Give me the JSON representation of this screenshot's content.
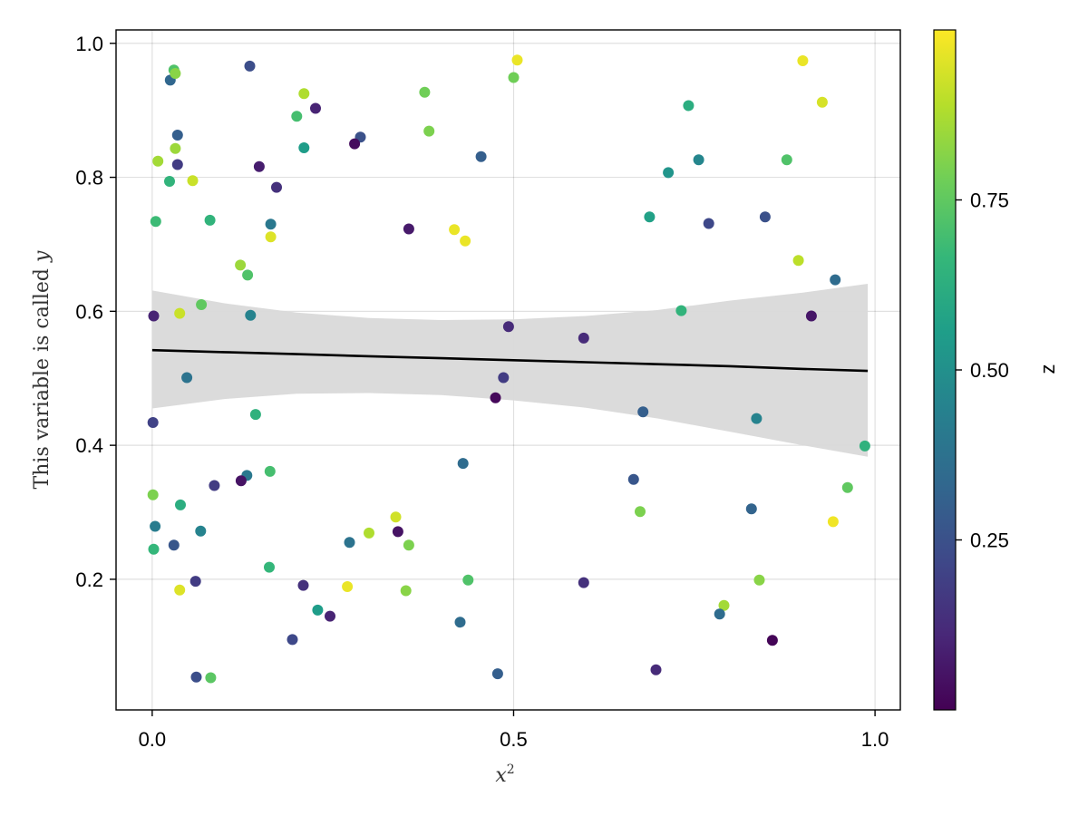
{
  "chart_data": {
    "type": "scatter",
    "title": "",
    "xlabel": "x",
    "xlabel_sup": "2",
    "ylabel": "This variable is called ",
    "ylabel_var": "y",
    "xlim": [
      -0.05,
      1.035
    ],
    "ylim": [
      0.005,
      1.02
    ],
    "xticks": [
      0.0,
      0.5,
      1.0
    ],
    "xtick_labels": [
      "0.0",
      "0.5",
      "1.0"
    ],
    "yticks": [
      0.2,
      0.4,
      0.6,
      0.8,
      1.0
    ],
    "ytick_labels": [
      "0.2",
      "0.4",
      "0.6",
      "0.8",
      "1.0"
    ],
    "grid": true,
    "colorbar": {
      "label": "z",
      "range": [
        0.0,
        1.0
      ],
      "ticks": [
        0.25,
        0.5,
        0.75
      ],
      "tick_labels": [
        "0.25",
        "0.50",
        "0.75"
      ],
      "colormap": "viridis"
    },
    "colors": {
      "viridis": [
        "#440154",
        "#482878",
        "#3e4989",
        "#31688e",
        "#26828e",
        "#1f9e89",
        "#35b779",
        "#6ece58",
        "#b5de2b",
        "#fde725"
      ],
      "fit_line": "#000000",
      "band": "#d9d9d9"
    },
    "fit": {
      "x": [
        0.0,
        0.1,
        0.2,
        0.3,
        0.4,
        0.5,
        0.6,
        0.7,
        0.8,
        0.9,
        0.99
      ],
      "y": [
        0.542,
        0.539,
        0.536,
        0.533,
        0.53,
        0.527,
        0.524,
        0.521,
        0.518,
        0.514,
        0.511
      ],
      "lower": [
        0.455,
        0.469,
        0.477,
        0.478,
        0.475,
        0.467,
        0.456,
        0.44,
        0.42,
        0.4,
        0.383
      ],
      "upper": [
        0.631,
        0.612,
        0.598,
        0.59,
        0.587,
        0.588,
        0.593,
        0.602,
        0.616,
        0.628,
        0.641
      ]
    },
    "points": [
      {
        "x": 0.03,
        "y": 0.96,
        "z": 0.72
      },
      {
        "x": 0.025,
        "y": 0.945,
        "z": 0.33
      },
      {
        "x": 0.032,
        "y": 0.955,
        "z": 0.82
      },
      {
        "x": 0.135,
        "y": 0.966,
        "z": 0.24
      },
      {
        "x": 0.505,
        "y": 0.975,
        "z": 0.97
      },
      {
        "x": 0.5,
        "y": 0.949,
        "z": 0.78
      },
      {
        "x": 0.377,
        "y": 0.927,
        "z": 0.78
      },
      {
        "x": 0.21,
        "y": 0.925,
        "z": 0.88
      },
      {
        "x": 0.226,
        "y": 0.903,
        "z": 0.1
      },
      {
        "x": 0.2,
        "y": 0.891,
        "z": 0.7
      },
      {
        "x": 0.383,
        "y": 0.869,
        "z": 0.8
      },
      {
        "x": 0.035,
        "y": 0.863,
        "z": 0.3
      },
      {
        "x": 0.288,
        "y": 0.86,
        "z": 0.25
      },
      {
        "x": 0.28,
        "y": 0.85,
        "z": 0.03
      },
      {
        "x": 0.21,
        "y": 0.844,
        "z": 0.55
      },
      {
        "x": 0.032,
        "y": 0.843,
        "z": 0.85
      },
      {
        "x": 0.455,
        "y": 0.831,
        "z": 0.3
      },
      {
        "x": 0.008,
        "y": 0.824,
        "z": 0.86
      },
      {
        "x": 0.035,
        "y": 0.819,
        "z": 0.18
      },
      {
        "x": 0.148,
        "y": 0.816,
        "z": 0.08
      },
      {
        "x": 0.024,
        "y": 0.794,
        "z": 0.65
      },
      {
        "x": 0.056,
        "y": 0.795,
        "z": 0.92
      },
      {
        "x": 0.172,
        "y": 0.785,
        "z": 0.14
      },
      {
        "x": 0.005,
        "y": 0.734,
        "z": 0.68
      },
      {
        "x": 0.08,
        "y": 0.736,
        "z": 0.65
      },
      {
        "x": 0.164,
        "y": 0.73,
        "z": 0.4
      },
      {
        "x": 0.355,
        "y": 0.723,
        "z": 0.07
      },
      {
        "x": 0.418,
        "y": 0.722,
        "z": 0.97
      },
      {
        "x": 0.433,
        "y": 0.705,
        "z": 0.97
      },
      {
        "x": 0.164,
        "y": 0.711,
        "z": 0.95
      },
      {
        "x": 0.122,
        "y": 0.669,
        "z": 0.85
      },
      {
        "x": 0.132,
        "y": 0.654,
        "z": 0.72
      },
      {
        "x": 0.068,
        "y": 0.61,
        "z": 0.75
      },
      {
        "x": 0.136,
        "y": 0.594,
        "z": 0.45
      },
      {
        "x": 0.002,
        "y": 0.593,
        "z": 0.1
      },
      {
        "x": 0.038,
        "y": 0.597,
        "z": 0.92
      },
      {
        "x": 0.493,
        "y": 0.577,
        "z": 0.12
      },
      {
        "x": 0.597,
        "y": 0.56,
        "z": 0.12
      },
      {
        "x": 0.048,
        "y": 0.501,
        "z": 0.38
      },
      {
        "x": 0.486,
        "y": 0.501,
        "z": 0.18
      },
      {
        "x": 0.475,
        "y": 0.471,
        "z": 0.02
      },
      {
        "x": 0.143,
        "y": 0.446,
        "z": 0.64
      },
      {
        "x": 0.001,
        "y": 0.434,
        "z": 0.2
      },
      {
        "x": 0.43,
        "y": 0.373,
        "z": 0.35
      },
      {
        "x": 0.163,
        "y": 0.361,
        "z": 0.7
      },
      {
        "x": 0.131,
        "y": 0.355,
        "z": 0.4
      },
      {
        "x": 0.123,
        "y": 0.347,
        "z": 0.05
      },
      {
        "x": 0.086,
        "y": 0.34,
        "z": 0.18
      },
      {
        "x": 0.001,
        "y": 0.326,
        "z": 0.8
      },
      {
        "x": 0.039,
        "y": 0.311,
        "z": 0.62
      },
      {
        "x": 0.337,
        "y": 0.293,
        "z": 0.93
      },
      {
        "x": 0.004,
        "y": 0.279,
        "z": 0.42
      },
      {
        "x": 0.067,
        "y": 0.272,
        "z": 0.45
      },
      {
        "x": 0.3,
        "y": 0.269,
        "z": 0.88
      },
      {
        "x": 0.34,
        "y": 0.271,
        "z": 0.05
      },
      {
        "x": 0.273,
        "y": 0.255,
        "z": 0.38
      },
      {
        "x": 0.03,
        "y": 0.251,
        "z": 0.27
      },
      {
        "x": 0.355,
        "y": 0.251,
        "z": 0.8
      },
      {
        "x": 0.002,
        "y": 0.245,
        "z": 0.66
      },
      {
        "x": 0.162,
        "y": 0.218,
        "z": 0.66
      },
      {
        "x": 0.209,
        "y": 0.191,
        "z": 0.14
      },
      {
        "x": 0.06,
        "y": 0.197,
        "z": 0.18
      },
      {
        "x": 0.038,
        "y": 0.184,
        "z": 0.95
      },
      {
        "x": 0.27,
        "y": 0.189,
        "z": 0.97
      },
      {
        "x": 0.351,
        "y": 0.183,
        "z": 0.82
      },
      {
        "x": 0.437,
        "y": 0.199,
        "z": 0.72
      },
      {
        "x": 0.229,
        "y": 0.154,
        "z": 0.55
      },
      {
        "x": 0.246,
        "y": 0.145,
        "z": 0.1
      },
      {
        "x": 0.194,
        "y": 0.11,
        "z": 0.22
      },
      {
        "x": 0.426,
        "y": 0.136,
        "z": 0.35
      },
      {
        "x": 0.061,
        "y": 0.054,
        "z": 0.24
      },
      {
        "x": 0.081,
        "y": 0.053,
        "z": 0.74
      },
      {
        "x": 0.478,
        "y": 0.059,
        "z": 0.3
      },
      {
        "x": 0.597,
        "y": 0.195,
        "z": 0.14
      },
      {
        "x": 0.697,
        "y": 0.065,
        "z": 0.12
      },
      {
        "x": 0.675,
        "y": 0.301,
        "z": 0.8
      },
      {
        "x": 0.666,
        "y": 0.349,
        "z": 0.27
      },
      {
        "x": 0.679,
        "y": 0.45,
        "z": 0.3
      },
      {
        "x": 0.732,
        "y": 0.601,
        "z": 0.65
      },
      {
        "x": 0.688,
        "y": 0.741,
        "z": 0.57
      },
      {
        "x": 0.714,
        "y": 0.807,
        "z": 0.52
      },
      {
        "x": 0.742,
        "y": 0.907,
        "z": 0.62
      },
      {
        "x": 0.756,
        "y": 0.826,
        "z": 0.46
      },
      {
        "x": 0.77,
        "y": 0.731,
        "z": 0.22
      },
      {
        "x": 0.848,
        "y": 0.741,
        "z": 0.25
      },
      {
        "x": 0.878,
        "y": 0.826,
        "z": 0.72
      },
      {
        "x": 0.9,
        "y": 0.974,
        "z": 0.97
      },
      {
        "x": 0.927,
        "y": 0.912,
        "z": 0.94
      },
      {
        "x": 0.894,
        "y": 0.676,
        "z": 0.9
      },
      {
        "x": 0.945,
        "y": 0.647,
        "z": 0.35
      },
      {
        "x": 0.912,
        "y": 0.593,
        "z": 0.06
      },
      {
        "x": 0.836,
        "y": 0.44,
        "z": 0.45
      },
      {
        "x": 0.986,
        "y": 0.399,
        "z": 0.64
      },
      {
        "x": 0.962,
        "y": 0.337,
        "z": 0.75
      },
      {
        "x": 0.942,
        "y": 0.286,
        "z": 0.98
      },
      {
        "x": 0.829,
        "y": 0.305,
        "z": 0.32
      },
      {
        "x": 0.84,
        "y": 0.199,
        "z": 0.82
      },
      {
        "x": 0.791,
        "y": 0.161,
        "z": 0.86
      },
      {
        "x": 0.785,
        "y": 0.148,
        "z": 0.35
      },
      {
        "x": 0.858,
        "y": 0.109,
        "z": 0.01
      }
    ]
  }
}
